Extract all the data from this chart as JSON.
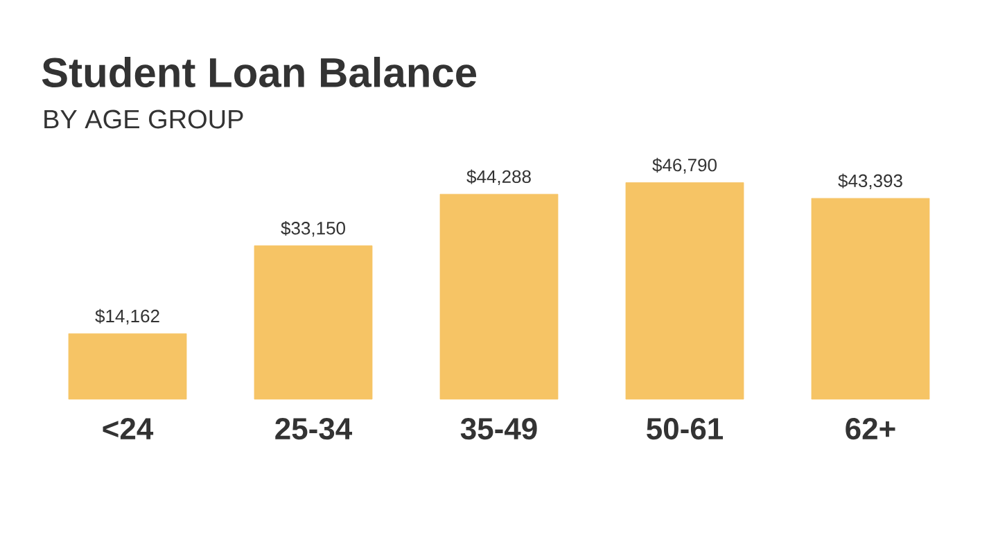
{
  "chart_data": {
    "type": "bar",
    "title": "Student Loan Balance",
    "subtitle": "BY AGE GROUP",
    "categories": [
      "<24",
      "25-34",
      "35-49",
      "50-61",
      "62+"
    ],
    "values": [
      14162,
      33150,
      44288,
      46790,
      43393
    ],
    "value_labels": [
      "$14,162",
      "$33,150",
      "$44,288",
      "$46,790",
      "$43,393"
    ],
    "color": "#f6c465"
  }
}
